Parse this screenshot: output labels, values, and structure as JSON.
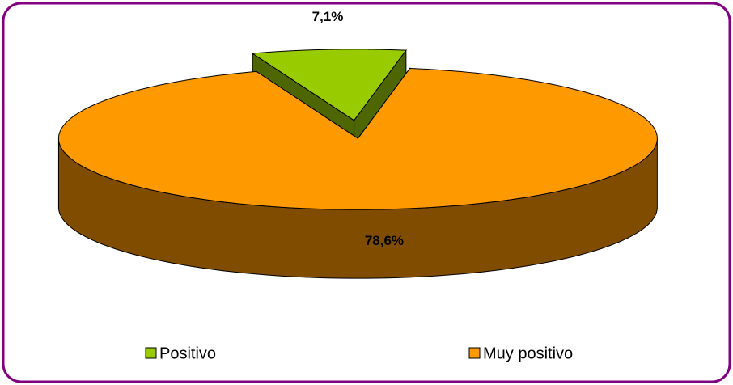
{
  "chart_data": {
    "type": "pie3d",
    "categories": [
      "Positivo",
      "Muy positivo"
    ],
    "values": [
      7.1,
      78.6
    ],
    "value_labels": [
      "7,1%",
      "78,6%"
    ],
    "colors": [
      "#99cc00",
      "#ff9900"
    ],
    "legend": "bottom"
  }
}
